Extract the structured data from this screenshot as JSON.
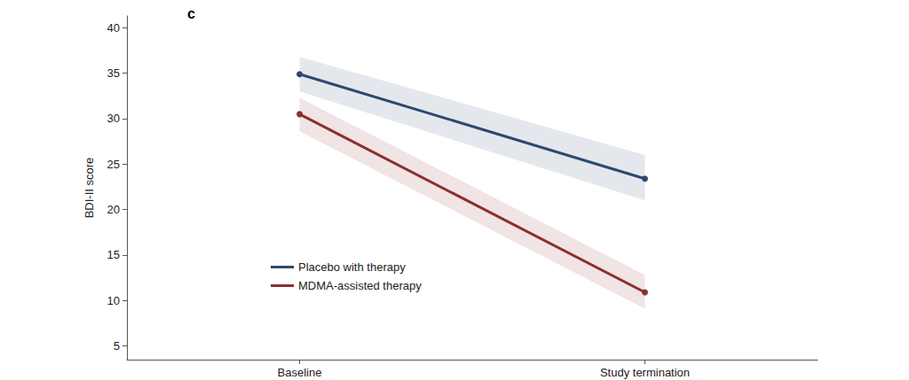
{
  "chart_data": {
    "type": "line",
    "title": "c",
    "y_label": "BDI-II score",
    "categories": [
      "Baseline",
      "Study termination"
    ],
    "series": [
      {
        "name": "Placebo with therapy",
        "color": "#2c4a6e",
        "values": [
          34.9,
          23.4
        ],
        "ci_lower": [
          33.0,
          21.0
        ],
        "ci_upper": [
          36.8,
          26.0
        ]
      },
      {
        "name": "MDMA-assisted therapy",
        "color": "#8b2f2f",
        "values": [
          30.5,
          10.9
        ],
        "ci_lower": [
          28.6,
          9.1
        ],
        "ci_upper": [
          32.3,
          12.8
        ]
      }
    ],
    "ylim": [
      3.5,
      41.3
    ],
    "yticks": [
      5,
      10,
      15,
      20,
      25,
      30,
      35,
      40
    ],
    "grid": false,
    "legend": "lower left",
    "marker": "circle",
    "line_style": "solid"
  }
}
